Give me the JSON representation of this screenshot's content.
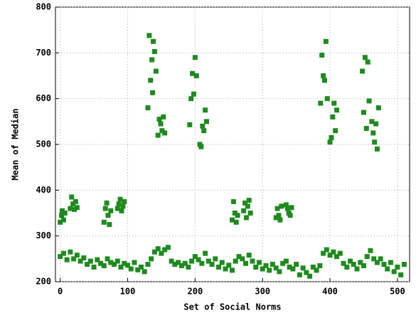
{
  "chart_data": {
    "type": "scatter",
    "x_label": "Set of Social Norms",
    "y_label": "Mean of Median",
    "color": "#1f8a1f",
    "grid": true,
    "xlim": [
      -7,
      518
    ],
    "ylim": [
      200,
      800
    ],
    "xticks": [
      0,
      100,
      200,
      300,
      400,
      500
    ],
    "yticks": [
      200,
      300,
      400,
      500,
      600,
      700,
      800
    ],
    "x": [
      0,
      5,
      10,
      15,
      20,
      25,
      30,
      35,
      40,
      45,
      50,
      55,
      60,
      65,
      70,
      75,
      80,
      85,
      90,
      95,
      100,
      105,
      110,
      115,
      120,
      125,
      130,
      135,
      140,
      145,
      150,
      155,
      160,
      165,
      170,
      175,
      180,
      185,
      190,
      195,
      200,
      205,
      210,
      215,
      220,
      225,
      230,
      235,
      240,
      245,
      250,
      255,
      260,
      265,
      270,
      275,
      280,
      285,
      290,
      295,
      300,
      305,
      310,
      315,
      320,
      325,
      330,
      335,
      340,
      345,
      350,
      355,
      360,
      365,
      370,
      375,
      380,
      385,
      390,
      395,
      400,
      405,
      410,
      415,
      420,
      425,
      430,
      435,
      440,
      445,
      450,
      455,
      460,
      465,
      470,
      475,
      480,
      485,
      490,
      495,
      500,
      505,
      510,
      0,
      2,
      3,
      5,
      7,
      15,
      17,
      19,
      21,
      23,
      25,
      65,
      67,
      69,
      71,
      73,
      75,
      85,
      87,
      89,
      91,
      93,
      95,
      130,
      132,
      134,
      136,
      137,
      138,
      140,
      142,
      145,
      147,
      149,
      151,
      153,
      155,
      192,
      194,
      196,
      198,
      200,
      202,
      207,
      209,
      211,
      213,
      215,
      217,
      255,
      257,
      259,
      261,
      263,
      272,
      274,
      276,
      278,
      280,
      282,
      320,
      322,
      324,
      326,
      328,
      335,
      337,
      339,
      341,
      343,
      386,
      388,
      390,
      392,
      394,
      396,
      400,
      402,
      404,
      406,
      408,
      410,
      448,
      450,
      452,
      454,
      456,
      458,
      462,
      464,
      466,
      468,
      470,
      472
    ],
    "values": [
      255,
      262,
      248,
      265,
      250,
      258,
      245,
      252,
      238,
      245,
      232,
      248,
      240,
      235,
      250,
      242,
      238,
      245,
      232,
      240,
      236,
      228,
      242,
      226,
      232,
      222,
      238,
      250,
      265,
      272,
      262,
      270,
      275,
      245,
      238,
      242,
      235,
      240,
      232,
      245,
      255,
      248,
      240,
      262,
      245,
      238,
      250,
      232,
      242,
      228,
      236,
      225,
      245,
      255,
      250,
      240,
      258,
      245,
      232,
      242,
      228,
      235,
      225,
      238,
      230,
      222,
      240,
      245,
      232,
      228,
      238,
      215,
      230,
      220,
      212,
      232,
      225,
      235,
      262,
      270,
      258,
      265,
      255,
      262,
      240,
      232,
      245,
      238,
      228,
      242,
      235,
      255,
      268,
      250,
      242,
      250,
      238,
      228,
      242,
      222,
      232,
      215,
      238,
      330,
      345,
      355,
      335,
      350,
      360,
      385,
      370,
      358,
      375,
      362,
      330,
      360,
      372,
      345,
      325,
      355,
      360,
      370,
      380,
      355,
      365,
      375,
      580,
      738,
      640,
      685,
      613,
      725,
      703,
      660,
      520,
      555,
      545,
      530,
      560,
      525,
      543,
      600,
      655,
      610,
      690,
      650,
      500,
      495,
      540,
      530,
      575,
      550,
      335,
      375,
      350,
      330,
      345,
      355,
      372,
      340,
      365,
      378,
      350,
      340,
      360,
      345,
      335,
      365,
      368,
      360,
      350,
      345,
      362,
      590,
      695,
      650,
      640,
      725,
      600,
      505,
      515,
      560,
      590,
      530,
      575,
      660,
      570,
      690,
      535,
      680,
      595,
      550,
      525,
      505,
      545,
      490,
      580
    ]
  }
}
